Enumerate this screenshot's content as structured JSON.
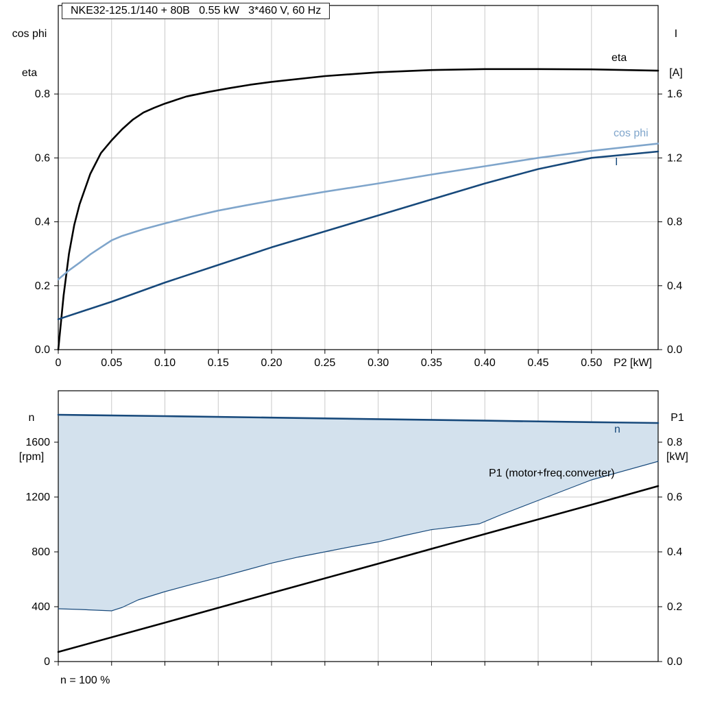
{
  "colors": {
    "black": "#000000",
    "dark_blue": "#17497b",
    "light_blue": "#7fa5cb",
    "band_fill": "#d3e1ed",
    "grid": "#c9c9c9"
  },
  "chart_data": [
    {
      "type": "line",
      "title": "NKE32-125.1/140 + 80B   0.55 kW   3*460 V, 60 Hz",
      "grid": true,
      "legend_position": "inline-right",
      "x_axis": {
        "label": "P2 [kW]",
        "lim": [
          0,
          0.5625
        ],
        "ticks": [
          0,
          0.05,
          0.1,
          0.15,
          0.2,
          0.25,
          0.3,
          0.35,
          0.4,
          0.45,
          0.5
        ],
        "tick_labels": [
          "0",
          "0.05",
          "0.10",
          "0.15",
          "0.20",
          "0.25",
          "0.30",
          "0.35",
          "0.40",
          "0.45",
          "0.50"
        ]
      },
      "y_left": {
        "label_lines": [
          "cos phi",
          "eta"
        ],
        "lim": [
          0,
          1.077
        ],
        "ticks": [
          0,
          0.2,
          0.4,
          0.6,
          0.8
        ],
        "tick_labels": [
          "0.0",
          "0.2",
          "0.4",
          "0.6",
          "0.8"
        ]
      },
      "y_right": {
        "label_lines": [
          "I",
          "[A]"
        ],
        "lim": [
          0,
          2.154
        ],
        "ticks": [
          0,
          0.4,
          0.8,
          1.2,
          1.6
        ],
        "tick_labels": [
          "0.0",
          "0.4",
          "0.8",
          "1.2",
          "1.6"
        ]
      },
      "series": [
        {
          "name": "eta",
          "label": "eta",
          "axis": "left",
          "color": "black",
          "width": 2.6,
          "points": [
            [
              0,
              0
            ],
            [
              0.005,
              0.17
            ],
            [
              0.01,
              0.3
            ],
            [
              0.015,
              0.39
            ],
            [
              0.02,
              0.455
            ],
            [
              0.03,
              0.55
            ],
            [
              0.04,
              0.615
            ],
            [
              0.05,
              0.655
            ],
            [
              0.06,
              0.69
            ],
            [
              0.07,
              0.72
            ],
            [
              0.08,
              0.742
            ],
            [
              0.09,
              0.757
            ],
            [
              0.1,
              0.77
            ],
            [
              0.12,
              0.792
            ],
            [
              0.14,
              0.806
            ],
            [
              0.16,
              0.818
            ],
            [
              0.18,
              0.829
            ],
            [
              0.2,
              0.838
            ],
            [
              0.25,
              0.856
            ],
            [
              0.3,
              0.868
            ],
            [
              0.35,
              0.875
            ],
            [
              0.4,
              0.878
            ],
            [
              0.45,
              0.878
            ],
            [
              0.5,
              0.877
            ],
            [
              0.5625,
              0.873
            ]
          ]
        },
        {
          "name": "cos_phi",
          "label": "cos phi",
          "axis": "left",
          "color": "light_blue",
          "width": 2.6,
          "points": [
            [
              0,
              0.22
            ],
            [
              0.01,
              0.248
            ],
            [
              0.02,
              0.272
            ],
            [
              0.03,
              0.298
            ],
            [
              0.04,
              0.32
            ],
            [
              0.05,
              0.342
            ],
            [
              0.06,
              0.356
            ],
            [
              0.08,
              0.377
            ],
            [
              0.1,
              0.395
            ],
            [
              0.125,
              0.416
            ],
            [
              0.15,
              0.435
            ],
            [
              0.175,
              0.451
            ],
            [
              0.2,
              0.466
            ],
            [
              0.25,
              0.494
            ],
            [
              0.3,
              0.52
            ],
            [
              0.35,
              0.548
            ],
            [
              0.4,
              0.574
            ],
            [
              0.45,
              0.6
            ],
            [
              0.5,
              0.622
            ],
            [
              0.5625,
              0.645
            ]
          ]
        },
        {
          "name": "I",
          "label": "I",
          "axis": "right",
          "color": "dark_blue",
          "width": 2.6,
          "points": [
            [
              0,
              0.19
            ],
            [
              0.025,
              0.245
            ],
            [
              0.05,
              0.3
            ],
            [
              0.075,
              0.36
            ],
            [
              0.1,
              0.42
            ],
            [
              0.15,
              0.53
            ],
            [
              0.2,
              0.64
            ],
            [
              0.25,
              0.74
            ],
            [
              0.3,
              0.84
            ],
            [
              0.35,
              0.94
            ],
            [
              0.4,
              1.04
            ],
            [
              0.45,
              1.13
            ],
            [
              0.5,
              1.2
            ],
            [
              0.5625,
              1.24
            ]
          ]
        }
      ]
    },
    {
      "type": "line",
      "grid": true,
      "annotation": "n = 100 %",
      "x_axis": {
        "label": "",
        "lim": [
          0,
          0.5625
        ],
        "ticks": [
          0,
          0.05,
          0.1,
          0.15,
          0.2,
          0.25,
          0.3,
          0.35,
          0.4,
          0.45,
          0.5
        ],
        "tick_labels": []
      },
      "y_left": {
        "label_lines": [
          "n",
          "[rpm]"
        ],
        "lim": [
          0,
          1975
        ],
        "ticks": [
          0,
          400,
          800,
          1200,
          1600
        ],
        "tick_labels": [
          "0",
          "400",
          "800",
          "1200",
          "1600"
        ]
      },
      "y_right": {
        "label_lines": [
          "P1",
          "[kW]"
        ],
        "lim": [
          0,
          0.9875
        ],
        "ticks": [
          0,
          0.2,
          0.4,
          0.6,
          0.8
        ],
        "tick_labels": [
          "0.0",
          "0.2",
          "0.4",
          "0.6",
          "0.8"
        ]
      },
      "band": {
        "upper": "n",
        "lower": "n_min",
        "color": "band_fill"
      },
      "series": [
        {
          "name": "n",
          "label": "n",
          "axis": "left",
          "color": "dark_blue",
          "width": 2.6,
          "points": [
            [
              0,
              1800
            ],
            [
              0.1,
              1790
            ],
            [
              0.2,
              1779
            ],
            [
              0.3,
              1768
            ],
            [
              0.4,
              1757
            ],
            [
              0.5,
              1746
            ],
            [
              0.5625,
              1740
            ]
          ]
        },
        {
          "name": "n_min",
          "label": "",
          "axis": "left",
          "color": "dark_blue",
          "width": 1.2,
          "points": [
            [
              0,
              385
            ],
            [
              0.02,
              380
            ],
            [
              0.05,
              370
            ],
            [
              0.06,
              395
            ],
            [
              0.075,
              450
            ],
            [
              0.1,
              510
            ],
            [
              0.125,
              562
            ],
            [
              0.15,
              612
            ],
            [
              0.175,
              665
            ],
            [
              0.2,
              718
            ],
            [
              0.225,
              762
            ],
            [
              0.25,
              800
            ],
            [
              0.275,
              838
            ],
            [
              0.3,
              873
            ],
            [
              0.325,
              920
            ],
            [
              0.35,
              962
            ],
            [
              0.375,
              985
            ],
            [
              0.395,
              1005
            ],
            [
              0.415,
              1070
            ],
            [
              0.45,
              1175
            ],
            [
              0.5,
              1325
            ],
            [
              0.5625,
              1460
            ]
          ]
        },
        {
          "name": "P1",
          "label": "P1 (motor+freq.converter)",
          "axis": "right",
          "color": "black",
          "width": 2.6,
          "points": [
            [
              0,
              0.035
            ],
            [
              0.1,
              0.142
            ],
            [
              0.2,
              0.25
            ],
            [
              0.3,
              0.357
            ],
            [
              0.4,
              0.465
            ],
            [
              0.5,
              0.572
            ],
            [
              0.5625,
              0.64
            ]
          ]
        }
      ]
    }
  ]
}
